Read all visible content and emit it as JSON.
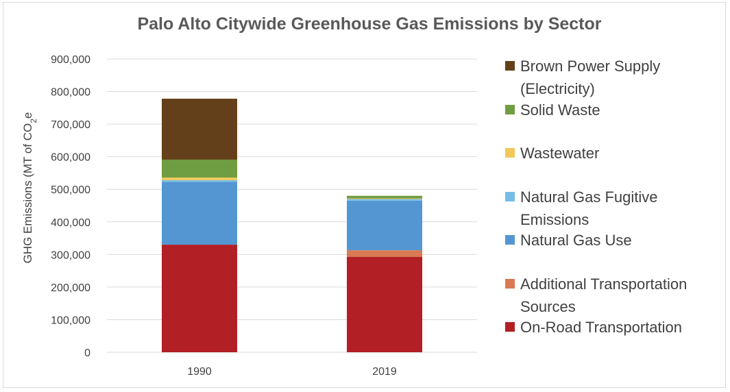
{
  "chart_data": {
    "type": "bar",
    "stacked": true,
    "title": "Palo Alto Citywide Greenhouse Gas Emissions by Sector",
    "ylabel": "GHG Emissions (MT of CO₂e",
    "xlabel": "",
    "categories": [
      "1990",
      "2019"
    ],
    "ylim": [
      0,
      900000
    ],
    "yticks": [
      0,
      100000,
      200000,
      300000,
      400000,
      500000,
      600000,
      700000,
      800000,
      900000
    ],
    "ytick_labels": [
      "0",
      "100,000",
      "200,000",
      "300,000",
      "400,000",
      "500,000",
      "600,000",
      "700,000",
      "800,000",
      "900,000"
    ],
    "grid": true,
    "legend_position": "right",
    "series": [
      {
        "name": "On-Road Transportation",
        "color": "#b21f24",
        "values": [
          330000,
          293000
        ]
      },
      {
        "name": "Additional Transportation Sources",
        "color": "#d97a52",
        "values": [
          0,
          20000
        ]
      },
      {
        "name": "Natural Gas Use",
        "color": "#5496d2",
        "values": [
          193000,
          152000
        ]
      },
      {
        "name": "Natural Gas Fugitive Emissions",
        "color": "#75bde7",
        "values": [
          5000,
          5000
        ]
      },
      {
        "name": "Wastewater",
        "color": "#f2c85b",
        "values": [
          8000,
          2000
        ]
      },
      {
        "name": "Solid Waste",
        "color": "#6f9d42",
        "values": [
          55000,
          8000
        ]
      },
      {
        "name": "Brown Power Supply (Electricity)",
        "color": "#64401a",
        "values": [
          187000,
          0
        ]
      }
    ]
  },
  "legend": {
    "items": [
      {
        "key": "brown",
        "lines": [
          "Brown Power Supply",
          "(Electricity)"
        ],
        "color": "#64401a"
      },
      {
        "key": "solid",
        "lines": [
          "Solid Waste"
        ],
        "color": "#6f9d42"
      },
      {
        "key": "wastewater",
        "lines": [
          "Wastewater"
        ],
        "color": "#f2c85b"
      },
      {
        "key": "fugitive",
        "lines": [
          "Natural Gas Fugitive",
          "Emissions"
        ],
        "color": "#75bde7"
      },
      {
        "key": "gasuse",
        "lines": [
          "Natural Gas Use"
        ],
        "color": "#5496d2"
      },
      {
        "key": "additional",
        "lines": [
          "Additional Transportation",
          "Sources"
        ],
        "color": "#d97a52"
      },
      {
        "key": "onroad",
        "lines": [
          "On-Road Transportation"
        ],
        "color": "#b21f24"
      }
    ]
  },
  "ylabel_parts": {
    "main": "GHG Emissions (MT of CO",
    "sub": "2",
    "tail": "e"
  }
}
